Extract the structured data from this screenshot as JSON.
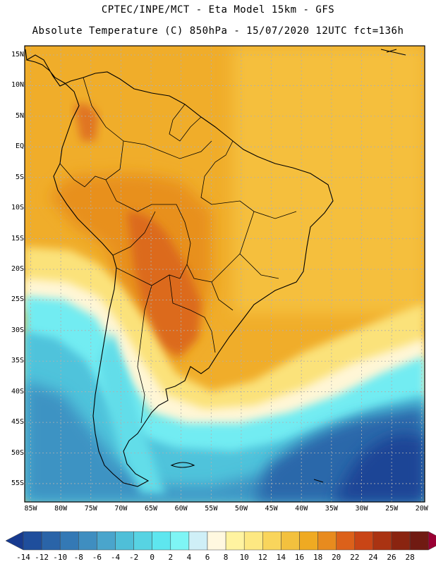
{
  "title": {
    "line1": "CPTEC/INPE/MCT -  Eta Model 15km - GFS",
    "line2": "Absolute Temperature (C) 850hPa - 15/07/2020 12UTC fct=136h"
  },
  "map": {
    "lat_labels": [
      "15N",
      "10N",
      "5N",
      "EQ",
      "5S",
      "10S",
      "15S",
      "20S",
      "25S",
      "30S",
      "35S",
      "40S",
      "45S",
      "50S",
      "55S"
    ],
    "lon_labels": [
      "85W",
      "80W",
      "75W",
      "70W",
      "65W",
      "60W",
      "55W",
      "50W",
      "45W",
      "40W",
      "35W",
      "30W",
      "25W",
      "20W"
    ],
    "lat_values": [
      15,
      10,
      5,
      0,
      -5,
      -10,
      -15,
      -20,
      -25,
      -30,
      -35,
      -40,
      -45,
      -50,
      -55
    ],
    "lon_values": [
      -85,
      -80,
      -75,
      -70,
      -65,
      -60,
      -55,
      -50,
      -45,
      -40,
      -35,
      -30,
      -25,
      -20
    ],
    "lat_range": [
      -58,
      16.5
    ],
    "lon_range": [
      -86,
      -19.5
    ]
  },
  "colorbar": {
    "labels": [
      "-14",
      "-12",
      "-10",
      "-8",
      "-6",
      "-4",
      "-2",
      "0",
      "2",
      "4",
      "6",
      "8",
      "10",
      "12",
      "14",
      "16",
      "18",
      "20",
      "22",
      "24",
      "26",
      "28"
    ],
    "colors": [
      "#173a8f",
      "#1f4e9c",
      "#2a64a8",
      "#3479b5",
      "#3f8ec0",
      "#4aa5cc",
      "#4fbfd8",
      "#57d3e3",
      "#5ee6ef",
      "#7ef5f5",
      "#cfeff7",
      "#fff8e0",
      "#fff3a0",
      "#fde882",
      "#f9d55c",
      "#f3c13e",
      "#efaa22",
      "#e88b1e",
      "#dc611a",
      "#c94516",
      "#aa3312",
      "#8a2410",
      "#701a12",
      "#990033"
    ]
  }
}
